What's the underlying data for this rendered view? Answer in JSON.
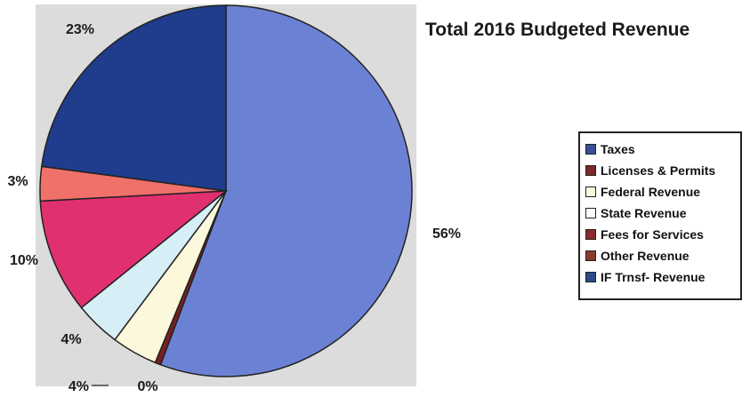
{
  "chart_data": {
    "type": "pie",
    "title": "Total 2016 Budgeted Revenue",
    "legend_position": "right",
    "slices": [
      {
        "name": "Taxes",
        "value": 56,
        "label": "56%",
        "color": "#6b82d4",
        "legend_color": "#3a4f9a"
      },
      {
        "name": "Licenses & Permits",
        "value": 0.5,
        "label": "0%",
        "color": "#7a1f1f",
        "legend_color": "#7a2a2a"
      },
      {
        "name": "Federal Revenue",
        "value": 4,
        "label": "4%",
        "color": "#fbf8dc",
        "legend_color": "#fbf8dc"
      },
      {
        "name": "State Revenue",
        "value": 4,
        "label": "4%",
        "color": "#d6eef6",
        "legend_color": "#ffffff"
      },
      {
        "name": "Fees for Services",
        "value": 10,
        "label": "10%",
        "color": "#e0306f",
        "legend_color": "#8a2a2a"
      },
      {
        "name": "Other Revenue",
        "value": 3,
        "label": "3%",
        "color": "#f0706a",
        "legend_color": "#8a3a2a"
      },
      {
        "name": "IF Trnsf- Revenue",
        "value": 23,
        "label": "23%",
        "color": "#1f3d8c",
        "legend_color": "#2a4a8a"
      }
    ]
  }
}
